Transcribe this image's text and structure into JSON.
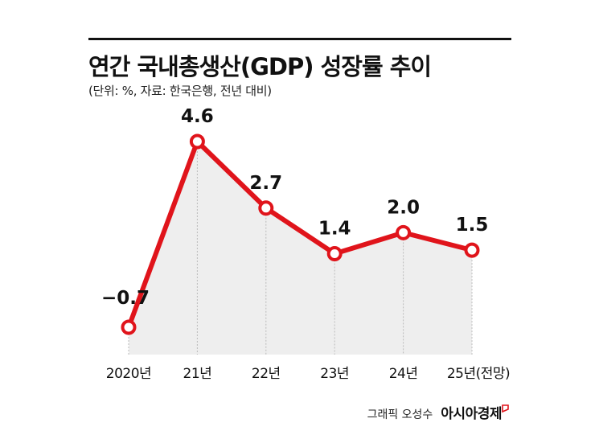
{
  "title": "연간 국내총생산(GDP) 성장률 추이",
  "subtitle": "(단위: %, 자료: 한국은행, 전년 대비)",
  "credit": {
    "label": "그래픽 오성수",
    "brand": "아시아경제"
  },
  "colors": {
    "line": "#e0141b",
    "area": "#eeeeee",
    "text": "#111111",
    "grid": "#bbbbbb"
  },
  "chart_data": {
    "type": "line",
    "title": "연간 국내총생산(GDP) 성장률 추이",
    "xlabel": "",
    "ylabel": "",
    "unit": "%",
    "categories": [
      "2020년",
      "21년",
      "22년",
      "23년",
      "24년",
      "25년(전망)"
    ],
    "values": [
      -0.7,
      4.6,
      2.7,
      1.4,
      2.0,
      1.5
    ],
    "value_labels": [
      "−0.7",
      "4.6",
      "2.7",
      "1.4",
      "2.0",
      "1.5"
    ],
    "forecast_categories": [
      "25년(전망)"
    ],
    "grid": false,
    "legend": "none"
  }
}
